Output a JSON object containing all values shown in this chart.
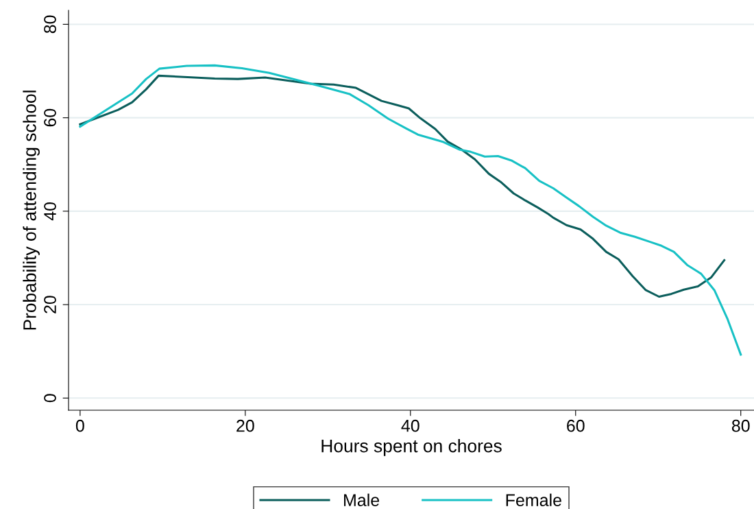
{
  "chart_data": {
    "type": "line",
    "xlabel": "Hours spent on chores",
    "ylabel": "Probability of attending school",
    "xlim": [
      -1.4,
      81.6
    ],
    "ylim": [
      -2.6,
      83
    ],
    "xticks": [
      0,
      20,
      40,
      60,
      80
    ],
    "yticks": [
      0,
      20,
      40,
      60,
      80
    ],
    "grid": "y",
    "legend": "bottom",
    "line_style": "solid",
    "marker": "none",
    "series": [
      {
        "name": "Male",
        "color": "#0b5e5c",
        "x": [
          0,
          4.6,
          6.3,
          8.0,
          9.5,
          16.3,
          19.1,
          22.4,
          27.9,
          30.7,
          33.4,
          36.5,
          38.4,
          39.8,
          41.2,
          43.0,
          44.5,
          46.1,
          47.8,
          49.5,
          50.9,
          52.5,
          53.9,
          55.4,
          56.7,
          57.3,
          58.9,
          60.6,
          62.1,
          63.7,
          65.2,
          66.9,
          68.5,
          70.1,
          71.6,
          73.1,
          74.8,
          76.4,
          78.0
        ],
        "values": [
          58.6,
          61.7,
          63.3,
          66.1,
          69.0,
          68.4,
          68.3,
          68.6,
          67.3,
          67.1,
          66.4,
          63.6,
          62.7,
          62.0,
          59.9,
          57.6,
          54.9,
          53.3,
          51.1,
          48.0,
          46.3,
          43.8,
          42.3,
          40.8,
          39.4,
          38.6,
          37.0,
          36.1,
          34.1,
          31.3,
          29.7,
          26.1,
          23.1,
          21.7,
          22.3,
          23.2,
          23.9,
          25.8,
          29.5
        ]
      },
      {
        "name": "Female",
        "color": "#18c1c5",
        "x": [
          0,
          4.6,
          6.3,
          8.0,
          9.6,
          12.9,
          16.3,
          19.6,
          22.9,
          26.2,
          29.0,
          32.6,
          34.9,
          37.3,
          39.5,
          40.9,
          44.0,
          45.9,
          47.3,
          49.0,
          50.6,
          52.3,
          53.9,
          55.6,
          57.3,
          58.9,
          60.4,
          62.1,
          63.7,
          65.4,
          67.2,
          68.9,
          70.4,
          71.9,
          73.5,
          75.2,
          76.8,
          78.4,
          80.0
        ],
        "values": [
          58.1,
          63.3,
          65.2,
          68.3,
          70.5,
          71.1,
          71.2,
          70.6,
          69.6,
          68.1,
          66.8,
          65.1,
          62.7,
          59.8,
          57.7,
          56.4,
          54.8,
          53.2,
          52.7,
          51.7,
          51.8,
          50.8,
          49.2,
          46.5,
          44.9,
          42.9,
          41.1,
          38.8,
          36.9,
          35.4,
          34.5,
          33.5,
          32.6,
          31.3,
          28.5,
          26.6,
          23.1,
          16.9,
          9.3
        ]
      }
    ]
  }
}
